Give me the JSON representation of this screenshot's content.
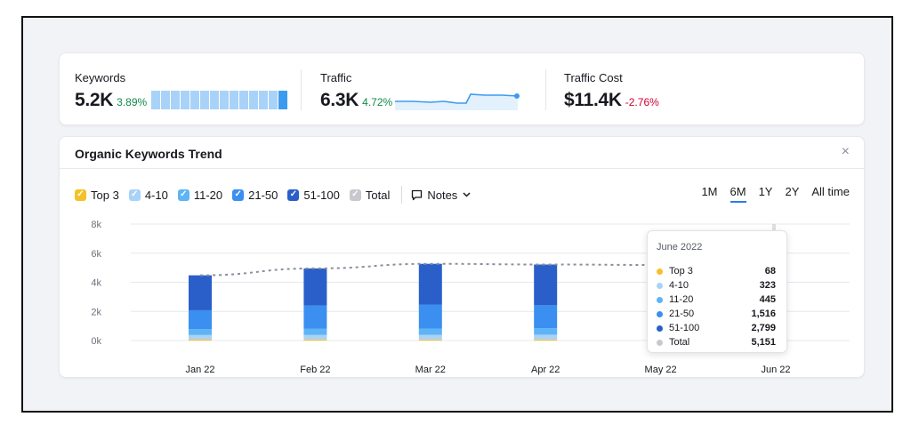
{
  "summary": {
    "keywords": {
      "label": "Keywords",
      "value": "5.2K",
      "change": "3.89%",
      "mini_bars": [
        1,
        1,
        1,
        1,
        1,
        1,
        1,
        1,
        1,
        1,
        1,
        1,
        1,
        1
      ]
    },
    "traffic": {
      "label": "Traffic",
      "value": "6.3K",
      "change": "4.72%"
    },
    "cost": {
      "label": "Traffic Cost",
      "value": "$11.4K",
      "change": "-2.76%"
    }
  },
  "trend": {
    "title": "Organic Keywords Trend",
    "close": "×",
    "filters": [
      {
        "label": "Top 3",
        "color": "#f5c129",
        "checked": true
      },
      {
        "label": "4-10",
        "color": "#a9d2f8",
        "checked": true
      },
      {
        "label": "11-20",
        "color": "#5db4f6",
        "checked": true
      },
      {
        "label": "21-50",
        "color": "#3a8ff0",
        "checked": true
      },
      {
        "label": "51-100",
        "color": "#2a5fc9",
        "checked": true
      },
      {
        "label": "Total",
        "color": "#c7c9cf",
        "checked": true
      }
    ],
    "notes_label": "Notes",
    "periods": [
      "1M",
      "6M",
      "1Y",
      "2Y",
      "All time"
    ],
    "active_period": "6M",
    "icons": {
      "notes": "notes-icon",
      "chevron": "chevron-down-icon",
      "close": "close-icon"
    }
  },
  "chart_data": {
    "type": "bar",
    "stacked": true,
    "categories": [
      "Jan 22",
      "Feb 22",
      "Mar 22",
      "Apr 22",
      "May 22",
      "Jun 22"
    ],
    "yticks": [
      "0k",
      "2k",
      "4k",
      "6k",
      "8k"
    ],
    "ylim": [
      0,
      8000
    ],
    "series": [
      {
        "name": "Top 3",
        "color": "#f5c129",
        "values": [
          80,
          75,
          70,
          72,
          70,
          68
        ]
      },
      {
        "name": "4-10",
        "color": "#a9d2f8",
        "values": [
          300,
          310,
          320,
          330,
          325,
          323
        ]
      },
      {
        "name": "11-20",
        "color": "#5db4f6",
        "values": [
          400,
          420,
          430,
          440,
          445,
          445
        ]
      },
      {
        "name": "21-50",
        "color": "#3a8ff0",
        "values": [
          1300,
          1600,
          1650,
          1580,
          1550,
          1516
        ]
      },
      {
        "name": "51-100",
        "color": "#2a5fc9",
        "values": [
          2400,
          2550,
          2800,
          2800,
          2800,
          2799
        ]
      }
    ],
    "total": {
      "name": "Total",
      "color": "#8a8f9b",
      "values": [
        4480,
        4955,
        5270,
        5222,
        5190,
        5151
      ]
    }
  },
  "tooltip": {
    "title": "June 2022",
    "rows": [
      {
        "label": "Top 3",
        "value": "68",
        "color": "#f5c129"
      },
      {
        "label": "4-10",
        "value": "323",
        "color": "#a9d2f8"
      },
      {
        "label": "11-20",
        "value": "445",
        "color": "#5db4f6"
      },
      {
        "label": "21-50",
        "value": "1,516",
        "color": "#3a8ff0"
      },
      {
        "label": "51-100",
        "value": "2,799",
        "color": "#2a5fc9"
      },
      {
        "label": "Total",
        "value": "5,151",
        "color": "#c7c9cf"
      }
    ]
  }
}
